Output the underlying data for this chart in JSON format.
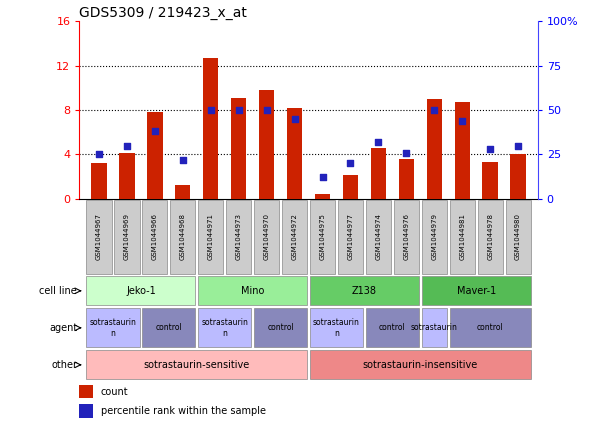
{
  "title": "GDS5309 / 219423_x_at",
  "samples": [
    "GSM1044967",
    "GSM1044969",
    "GSM1044966",
    "GSM1044968",
    "GSM1044971",
    "GSM1044973",
    "GSM1044970",
    "GSM1044972",
    "GSM1044975",
    "GSM1044977",
    "GSM1044974",
    "GSM1044976",
    "GSM1044979",
    "GSM1044981",
    "GSM1044978",
    "GSM1044980"
  ],
  "counts": [
    3.2,
    4.1,
    7.8,
    1.2,
    12.7,
    9.1,
    9.8,
    8.2,
    0.4,
    2.1,
    4.6,
    3.6,
    9.0,
    8.7,
    3.3,
    4.0
  ],
  "percentiles": [
    25,
    30,
    38,
    22,
    50,
    50,
    50,
    45,
    12,
    20,
    32,
    26,
    50,
    44,
    28,
    30
  ],
  "ylim_left": [
    0,
    16
  ],
  "ylim_right": [
    0,
    100
  ],
  "yticks_left": [
    0,
    4,
    8,
    12,
    16
  ],
  "yticks_right": [
    0,
    25,
    50,
    75,
    100
  ],
  "bar_color": "#cc2200",
  "dot_color": "#2222bb",
  "bg_color": "#ffffff",
  "cell_line_data": [
    {
      "label": "Jeko-1",
      "start": 0,
      "end": 4,
      "color": "#ccffcc"
    },
    {
      "label": "Mino",
      "start": 4,
      "end": 8,
      "color": "#99ee99"
    },
    {
      "label": "Z138",
      "start": 8,
      "end": 12,
      "color": "#66cc66"
    },
    {
      "label": "Maver-1",
      "start": 12,
      "end": 16,
      "color": "#55bb55"
    }
  ],
  "agent_data": [
    {
      "label": "sotrastaurin\nn",
      "start": 0,
      "end": 2,
      "color": "#bbbbff"
    },
    {
      "label": "control",
      "start": 2,
      "end": 4,
      "color": "#8888bb"
    },
    {
      "label": "sotrastaurin\nn",
      "start": 4,
      "end": 6,
      "color": "#bbbbff"
    },
    {
      "label": "control",
      "start": 6,
      "end": 8,
      "color": "#8888bb"
    },
    {
      "label": "sotrastaurin\nn",
      "start": 8,
      "end": 10,
      "color": "#bbbbff"
    },
    {
      "label": "control",
      "start": 10,
      "end": 12,
      "color": "#8888bb"
    },
    {
      "label": "sotrastaurin",
      "start": 12,
      "end": 13,
      "color": "#bbbbff"
    },
    {
      "label": "control",
      "start": 13,
      "end": 16,
      "color": "#8888bb"
    }
  ],
  "other_data": [
    {
      "label": "sotrastaurin-sensitive",
      "start": 0,
      "end": 8,
      "color": "#ffbbbb"
    },
    {
      "label": "sotrastaurin-insensitive",
      "start": 8,
      "end": 16,
      "color": "#ee8888"
    }
  ],
  "row_labels": [
    "cell line",
    "agent",
    "other"
  ],
  "legend_count_color": "#cc2200",
  "legend_dot_color": "#2222bb"
}
